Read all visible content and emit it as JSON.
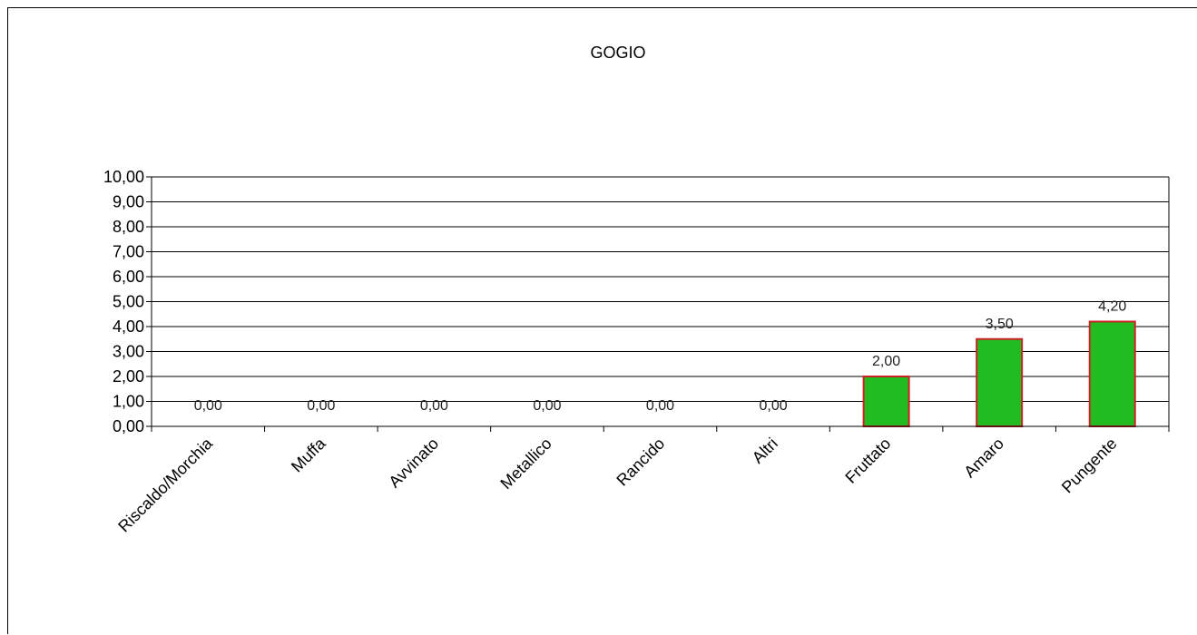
{
  "chart_data": {
    "type": "bar",
    "title": "GOGIO",
    "xlabel": "",
    "ylabel": "",
    "categories": [
      "Riscaldo/Morchia",
      "Muffa",
      "Avvinato",
      "Metallico",
      "Rancido",
      "Altri",
      "Fruttato",
      "Amaro",
      "Pungente"
    ],
    "values": [
      0,
      0,
      0,
      0,
      0,
      0,
      2.0,
      3.5,
      4.2
    ],
    "value_labels": [
      "0,00",
      "0,00",
      "0,00",
      "0,00",
      "0,00",
      "0,00",
      "2,00",
      "3,50",
      "4,20"
    ],
    "ylim": [
      0,
      10
    ],
    "yticks": [
      "0,00",
      "1,00",
      "2,00",
      "3,00",
      "4,00",
      "5,00",
      "6,00",
      "7,00",
      "8,00",
      "9,00",
      "10,00"
    ],
    "grid": true,
    "legend": "none",
    "bar_fill": "#22bb22",
    "bar_stroke": "#cc2222"
  }
}
